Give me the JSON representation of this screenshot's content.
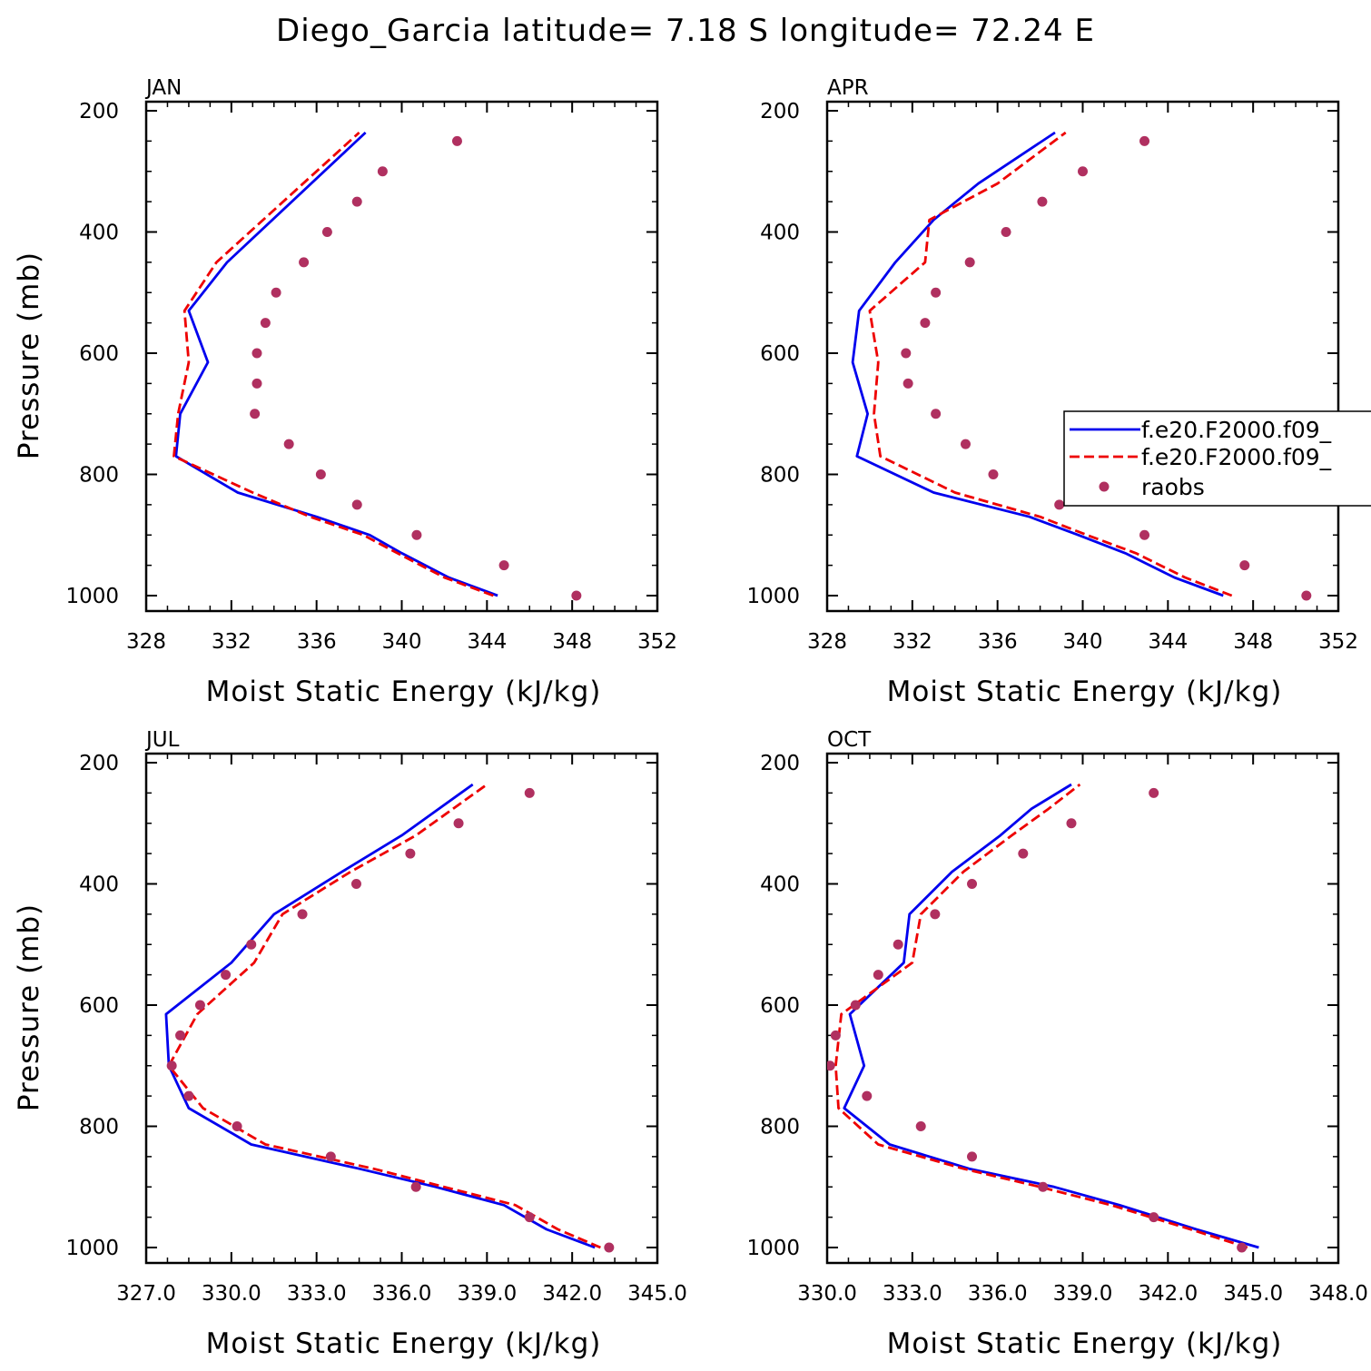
{
  "figure": {
    "title": "Diego_Garcia  latitude= 7.18 S longitude= 72.24 E"
  },
  "series_styles": [
    {
      "color": "#0000ee",
      "line": "solid"
    },
    {
      "color": "#ee0000",
      "line": "dashed"
    },
    {
      "color": "#b03060",
      "line": "dots"
    }
  ],
  "legend": {
    "entries": [
      "f.e20.F2000.f09_",
      "f.e20.F2000.f09_",
      "raobs"
    ],
    "panel": 1
  },
  "chart_data": [
    {
      "type": "line",
      "title": "JAN",
      "xlabel": "Moist Static Energy (kJ/kg)",
      "ylabel": "Pressure (mb)",
      "xlim": [
        328,
        352
      ],
      "xticks": [
        328,
        332,
        336,
        340,
        344,
        348,
        352
      ],
      "xtick_labels": [
        "328",
        "332",
        "336",
        "340",
        "344",
        "348",
        "352"
      ],
      "ylim": [
        200,
        1000
      ],
      "yticks": [
        200,
        400,
        600,
        800,
        1000
      ],
      "ytick_labels": [
        "200",
        "400",
        "600",
        "800",
        "1000"
      ],
      "series": [
        {
          "pressure": [
            1000,
            970,
            930,
            900,
            870,
            830,
            770,
            700,
            615,
            530,
            450,
            236
          ],
          "mse": [
            344.5,
            342.2,
            340.0,
            338.5,
            336.0,
            332.3,
            329.4,
            329.6,
            330.9,
            330.0,
            331.8,
            338.3
          ]
        },
        {
          "pressure": [
            1000,
            970,
            930,
            900,
            870,
            830,
            770,
            700,
            615,
            530,
            450,
            236
          ],
          "mse": [
            344.3,
            342.0,
            339.8,
            338.2,
            335.7,
            333.0,
            329.3,
            329.5,
            330.0,
            329.8,
            331.3,
            338.0
          ]
        },
        {
          "pressure": [
            1000,
            950,
            900,
            850,
            800,
            750,
            700,
            650,
            600,
            550,
            500,
            450,
            400,
            350,
            300,
            250
          ],
          "mse": [
            348.2,
            344.8,
            340.7,
            337.9,
            336.2,
            334.7,
            333.1,
            333.2,
            333.2,
            333.6,
            334.1,
            335.4,
            336.5,
            337.9,
            339.1,
            342.6
          ]
        }
      ]
    },
    {
      "type": "line",
      "title": "APR",
      "xlabel": "Moist Static Energy (kJ/kg)",
      "ylabel": "",
      "xlim": [
        328,
        352
      ],
      "xticks": [
        328,
        332,
        336,
        340,
        344,
        348,
        352
      ],
      "xtick_labels": [
        "328",
        "332",
        "336",
        "340",
        "344",
        "348",
        "352"
      ],
      "ylim": [
        200,
        1000
      ],
      "yticks": [
        200,
        400,
        600,
        800,
        1000
      ],
      "ytick_labels": [
        "200",
        "400",
        "600",
        "800",
        "1000"
      ],
      "series": [
        {
          "pressure": [
            1000,
            970,
            930,
            900,
            870,
            830,
            770,
            700,
            615,
            530,
            450,
            380,
            320,
            236
          ],
          "mse": [
            346.6,
            344.3,
            342.0,
            339.8,
            337.5,
            333.0,
            329.4,
            329.9,
            329.2,
            329.5,
            331.2,
            333.0,
            335.1,
            338.7
          ]
        },
        {
          "pressure": [
            1000,
            970,
            930,
            900,
            870,
            830,
            770,
            700,
            615,
            530,
            450,
            380,
            320,
            236
          ],
          "mse": [
            347.0,
            344.8,
            342.5,
            340.2,
            338.0,
            334.0,
            330.5,
            330.2,
            330.4,
            330.0,
            332.6,
            332.8,
            336.0,
            339.2
          ]
        },
        {
          "pressure": [
            1000,
            950,
            900,
            850,
            800,
            750,
            700,
            650,
            600,
            550,
            500,
            450,
            400,
            350,
            300,
            250
          ],
          "mse": [
            350.5,
            347.6,
            342.9,
            338.9,
            335.8,
            334.5,
            333.1,
            331.8,
            331.7,
            332.6,
            333.1,
            334.7,
            336.4,
            338.1,
            340.0,
            342.9
          ]
        }
      ]
    },
    {
      "type": "line",
      "title": "JUL",
      "xlabel": "Moist Static Energy (kJ/kg)",
      "ylabel": "Pressure (mb)",
      "xlim": [
        327,
        345
      ],
      "xticks": [
        327,
        330,
        333,
        336,
        339,
        342,
        345
      ],
      "xtick_labels": [
        "327.0",
        "330.0",
        "333.0",
        "336.0",
        "339.0",
        "342.0",
        "345.0"
      ],
      "ylim": [
        200,
        1000
      ],
      "yticks": [
        200,
        400,
        600,
        800,
        1000
      ],
      "ytick_labels": [
        "200",
        "400",
        "600",
        "800",
        "1000"
      ],
      "series": [
        {
          "pressure": [
            1000,
            970,
            930,
            900,
            870,
            830,
            770,
            700,
            615,
            530,
            450,
            380,
            320,
            236
          ],
          "mse": [
            342.8,
            341.1,
            339.6,
            337.2,
            334.5,
            330.7,
            328.5,
            327.8,
            327.7,
            330.0,
            331.5,
            333.9,
            336.0,
            338.5
          ]
        },
        {
          "pressure": [
            1000,
            970,
            930,
            900,
            870,
            830,
            770,
            700,
            615,
            530,
            450,
            380,
            320,
            236
          ],
          "mse": [
            343.0,
            341.5,
            340.0,
            337.5,
            335.0,
            331.2,
            329.0,
            327.8,
            328.8,
            330.8,
            331.8,
            334.2,
            336.5,
            339.0
          ]
        },
        {
          "pressure": [
            1000,
            950,
            900,
            850,
            800,
            750,
            700,
            650,
            600,
            550,
            500,
            450,
            400,
            350,
            300,
            250
          ],
          "mse": [
            343.3,
            340.5,
            336.5,
            333.5,
            330.2,
            328.5,
            327.9,
            328.2,
            328.9,
            329.8,
            330.7,
            332.5,
            334.4,
            336.3,
            338.0,
            340.5
          ]
        }
      ]
    },
    {
      "type": "line",
      "title": "OCT",
      "xlabel": "Moist Static Energy (kJ/kg)",
      "ylabel": "",
      "xlim": [
        330,
        348
      ],
      "xticks": [
        330,
        333,
        336,
        339,
        342,
        345,
        348
      ],
      "xtick_labels": [
        "330.0",
        "333.0",
        "336.0",
        "339.0",
        "342.0",
        "345.0",
        "348.0"
      ],
      "ylim": [
        200,
        1000
      ],
      "yticks": [
        200,
        400,
        600,
        800,
        1000
      ],
      "ytick_labels": [
        "200",
        "400",
        "600",
        "800",
        "1000"
      ],
      "series": [
        {
          "pressure": [
            1000,
            970,
            930,
            900,
            870,
            830,
            770,
            700,
            615,
            530,
            450,
            380,
            320,
            276,
            236
          ],
          "mse": [
            345.2,
            343.0,
            340.3,
            338.0,
            335.0,
            332.2,
            330.6,
            331.3,
            330.8,
            332.7,
            332.9,
            334.4,
            336.1,
            337.2,
            338.6
          ]
        },
        {
          "pressure": [
            1000,
            970,
            930,
            900,
            870,
            830,
            770,
            700,
            615,
            530,
            450,
            380,
            320,
            276,
            236
          ],
          "mse": [
            344.8,
            342.8,
            340.0,
            337.5,
            334.8,
            331.8,
            330.4,
            330.3,
            330.5,
            333.0,
            333.3,
            334.8,
            336.5,
            337.8,
            338.9
          ]
        },
        {
          "pressure": [
            1000,
            950,
            900,
            850,
            800,
            750,
            700,
            650,
            600,
            550,
            500,
            450,
            400,
            350,
            300,
            250
          ],
          "mse": [
            344.6,
            341.5,
            337.6,
            335.1,
            333.3,
            331.4,
            330.1,
            330.3,
            331.0,
            331.8,
            332.5,
            333.8,
            335.1,
            336.9,
            338.6,
            341.5
          ]
        }
      ]
    }
  ]
}
